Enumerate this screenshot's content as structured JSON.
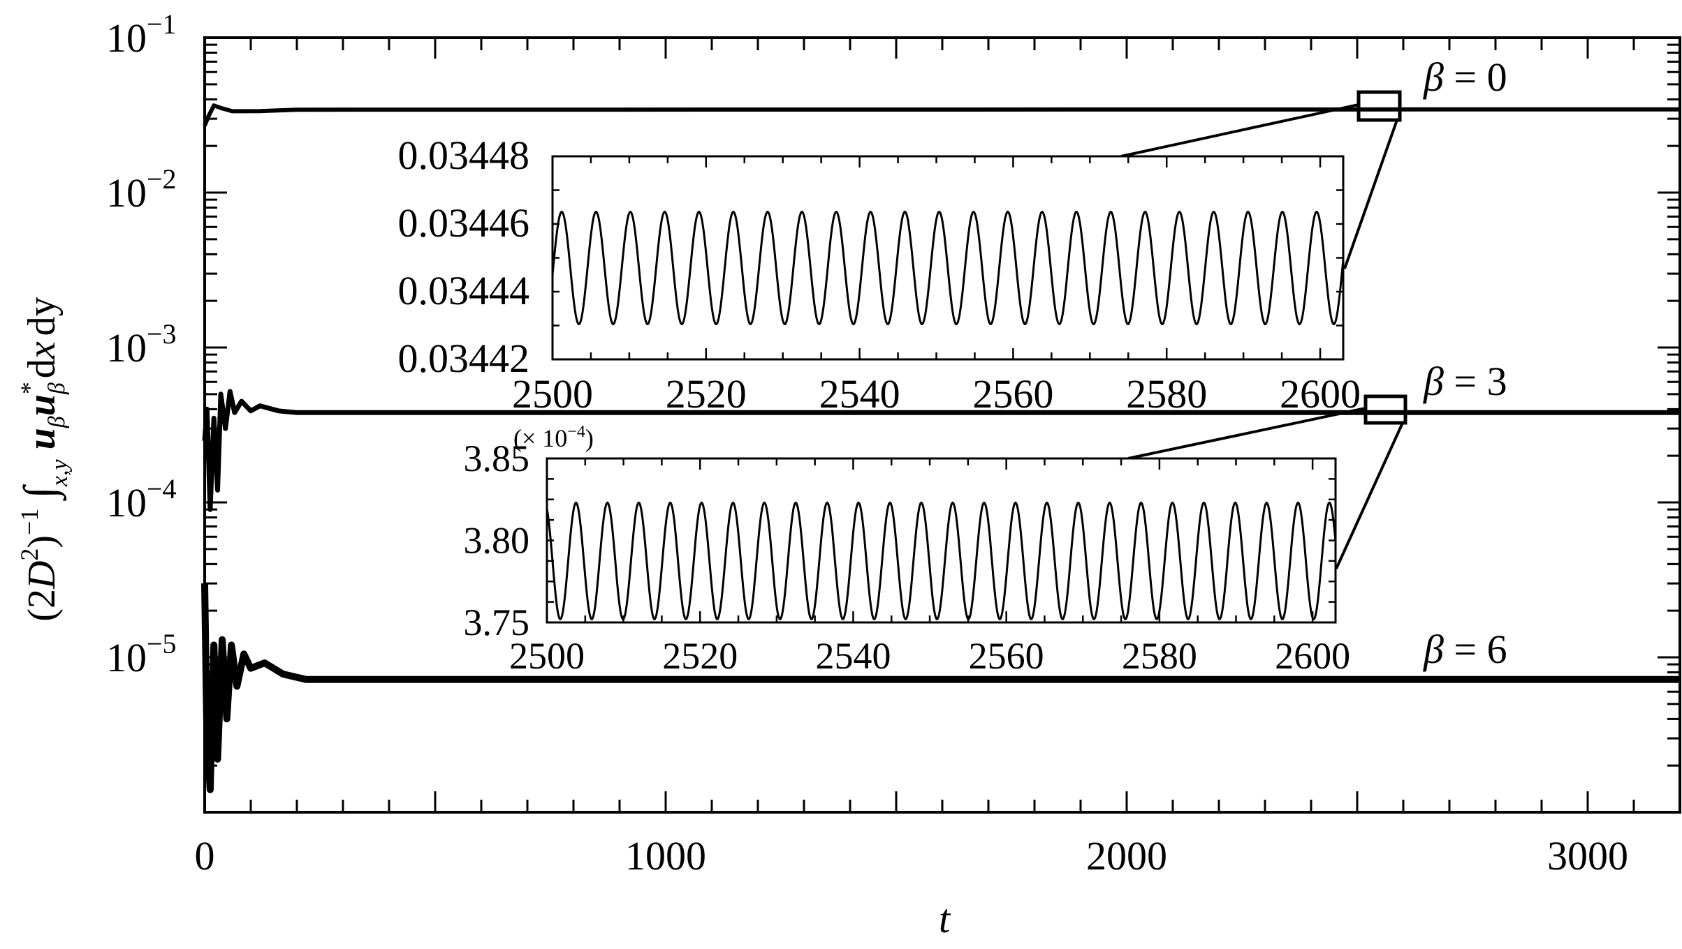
{
  "chart_data": {
    "type": "line",
    "title": "",
    "xlabel": "t",
    "ylabel": "(2D^2)^-1 ∫_{x,y} u_β u*_β dx dy",
    "yscale": "log",
    "xlim": [
      0,
      3200
    ],
    "ylim": [
      1e-06,
      0.1
    ],
    "xticks": [
      0,
      1000,
      2000,
      3000
    ],
    "xtick_labels": [
      "0",
      "1000",
      "2000",
      "3000"
    ],
    "xminor_step": 100,
    "yticks": [
      0.1,
      0.01,
      0.001,
      0.0001,
      1e-05
    ],
    "ytick_labels": [
      {
        "base": "10",
        "exp": "−1"
      },
      {
        "base": "10",
        "exp": "−2"
      },
      {
        "base": "10",
        "exp": "−3"
      },
      {
        "base": "10",
        "exp": "−4"
      },
      {
        "base": "10",
        "exp": "−5"
      }
    ],
    "grid": false,
    "legend": "inline labels at right",
    "series": [
      {
        "name": "β = 0",
        "label_greek": "β",
        "label_rest": " = 0",
        "steady_value": 0.03445,
        "transient": [
          [
            0,
            0.027
          ],
          [
            8,
            0.031
          ],
          [
            20,
            0.0365
          ],
          [
            35,
            0.0352
          ],
          [
            60,
            0.0335
          ],
          [
            120,
            0.0336
          ],
          [
            200,
            0.0343
          ],
          [
            3200,
            0.03445
          ]
        ]
      },
      {
        "name": "β = 3",
        "label_greek": "β",
        "label_rest": " = 3",
        "steady_value": 0.00038,
        "transient": [
          [
            0,
            0.00025
          ],
          [
            5,
            0.0004
          ],
          [
            12,
            9e-05
          ],
          [
            20,
            0.00035
          ],
          [
            28,
            0.00012
          ],
          [
            35,
            0.0005
          ],
          [
            45,
            0.0003
          ],
          [
            55,
            0.00052
          ],
          [
            65,
            0.00038
          ],
          [
            80,
            0.00045
          ],
          [
            100,
            0.00039
          ],
          [
            120,
            0.00042
          ],
          [
            160,
            0.00039
          ],
          [
            200,
            0.00038
          ],
          [
            3200,
            0.00038
          ]
        ]
      },
      {
        "name": "β = 6",
        "label_greek": "β",
        "label_rest": " = 6",
        "steady_value": 7.2e-06,
        "transient": [
          [
            0,
            3e-05
          ],
          [
            5,
            3e-06
          ],
          [
            12,
            1.4e-06
          ],
          [
            20,
            1.2e-05
          ],
          [
            28,
            2.2e-06
          ],
          [
            38,
            1.3e-05
          ],
          [
            48,
            4e-06
          ],
          [
            58,
            1.2e-05
          ],
          [
            70,
            6.5e-06
          ],
          [
            85,
            1.05e-05
          ],
          [
            100,
            8.5e-06
          ],
          [
            130,
            9.2e-06
          ],
          [
            170,
            7.8e-06
          ],
          [
            220,
            7.2e-06
          ],
          [
            3200,
            7.2e-06
          ]
        ]
      }
    ],
    "insets": [
      {
        "name": "inset-beta-0",
        "xlim": [
          2500,
          2603
        ],
        "ylim": [
          0.03442,
          0.03448
        ],
        "xticks": [
          2500,
          2520,
          2540,
          2560,
          2580,
          2600
        ],
        "xtick_labels": [
          "2500",
          "2520",
          "2540",
          "2560",
          "2580",
          "2600"
        ],
        "yticks": [
          0.03442,
          0.03444,
          0.03446,
          0.03448
        ],
        "ytick_labels": [
          "0.03442",
          "0.03444",
          "0.03446",
          "0.03448"
        ],
        "scale_note": "",
        "oscillation": {
          "mean": 0.034447,
          "amplitude": 1.66e-05,
          "period": 4.47,
          "phase_peak_t": 2501.2
        }
      },
      {
        "name": "inset-beta-3",
        "xlim": [
          2500,
          2603
        ],
        "ylim": [
          3.75,
          3.85
        ],
        "xticks": [
          2500,
          2520,
          2540,
          2560,
          2580,
          2600
        ],
        "xtick_labels": [
          "2500",
          "2520",
          "2540",
          "2560",
          "2580",
          "2600"
        ],
        "yticks": [
          3.75,
          3.8,
          3.85
        ],
        "ytick_labels": [
          "3.75",
          "3.80",
          "3.85"
        ],
        "scale_note": "(× 10",
        "scale_exp": "−4",
        "scale_close": ")",
        "oscillation": {
          "mean": 3.7875,
          "amplitude": 0.0355,
          "period": 4.1,
          "phase_peak_t": 2503.8
        }
      }
    ],
    "zoom_boxes": [
      {
        "target": "inset-beta-0",
        "t_range": [
          2500,
          2600
        ],
        "series": "β = 0"
      },
      {
        "target": "inset-beta-3",
        "t_range": [
          2500,
          2600
        ],
        "series": "β = 3"
      }
    ]
  },
  "labels": {
    "x_axis": "t",
    "y_axis_prefix": "(2",
    "y_axis_D": "D",
    "y_axis_D_exp": "2",
    "y_axis_close": ")",
    "y_axis_exp": "−1",
    "y_axis_integral": "∫",
    "y_axis_int_sub": "x,y",
    "y_axis_u": "u",
    "y_axis_u_sub": "β",
    "y_axis_u2": "u",
    "y_axis_star": "*",
    "y_axis_u2_sub": "β",
    "y_axis_dx": "d",
    "y_axis_x": "x",
    "y_axis_dy": "d",
    "y_axis_y": "y"
  }
}
